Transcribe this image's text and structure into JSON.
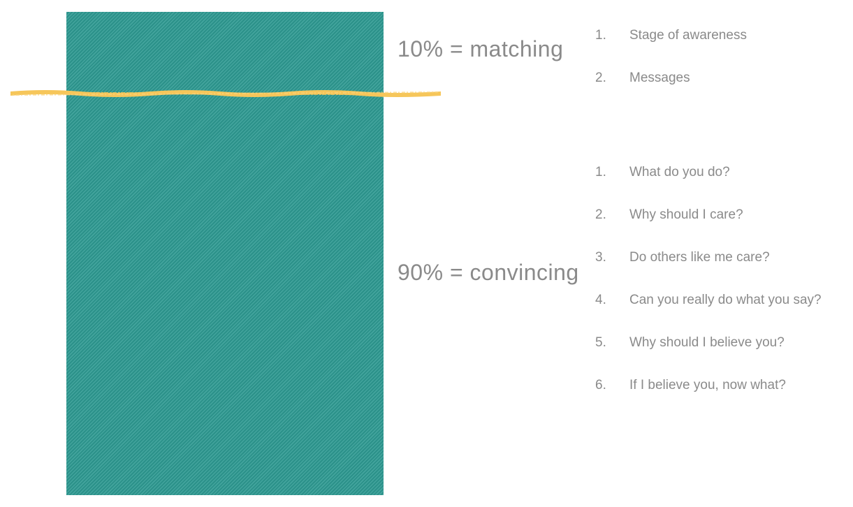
{
  "colors": {
    "bar": "#2e9a92",
    "divider": "#f6c65a",
    "text": "#8a8a8a"
  },
  "labels": {
    "matching": "10% = matching",
    "convincing": "90% = convincing"
  },
  "matching_list": [
    {
      "num": "1.",
      "text": "Stage of awareness"
    },
    {
      "num": "2.",
      "text": "Messages"
    }
  ],
  "convincing_list": [
    {
      "num": "1.",
      "text": "What do you do?"
    },
    {
      "num": "2.",
      "text": "Why should I care?"
    },
    {
      "num": "3.",
      "text": "Do others like me care?"
    },
    {
      "num": "4.",
      "text": "Can you really do what you say?"
    },
    {
      "num": "5.",
      "text": "Why should I believe you?"
    },
    {
      "num": "6.",
      "text": "If I believe you, now what?"
    }
  ]
}
